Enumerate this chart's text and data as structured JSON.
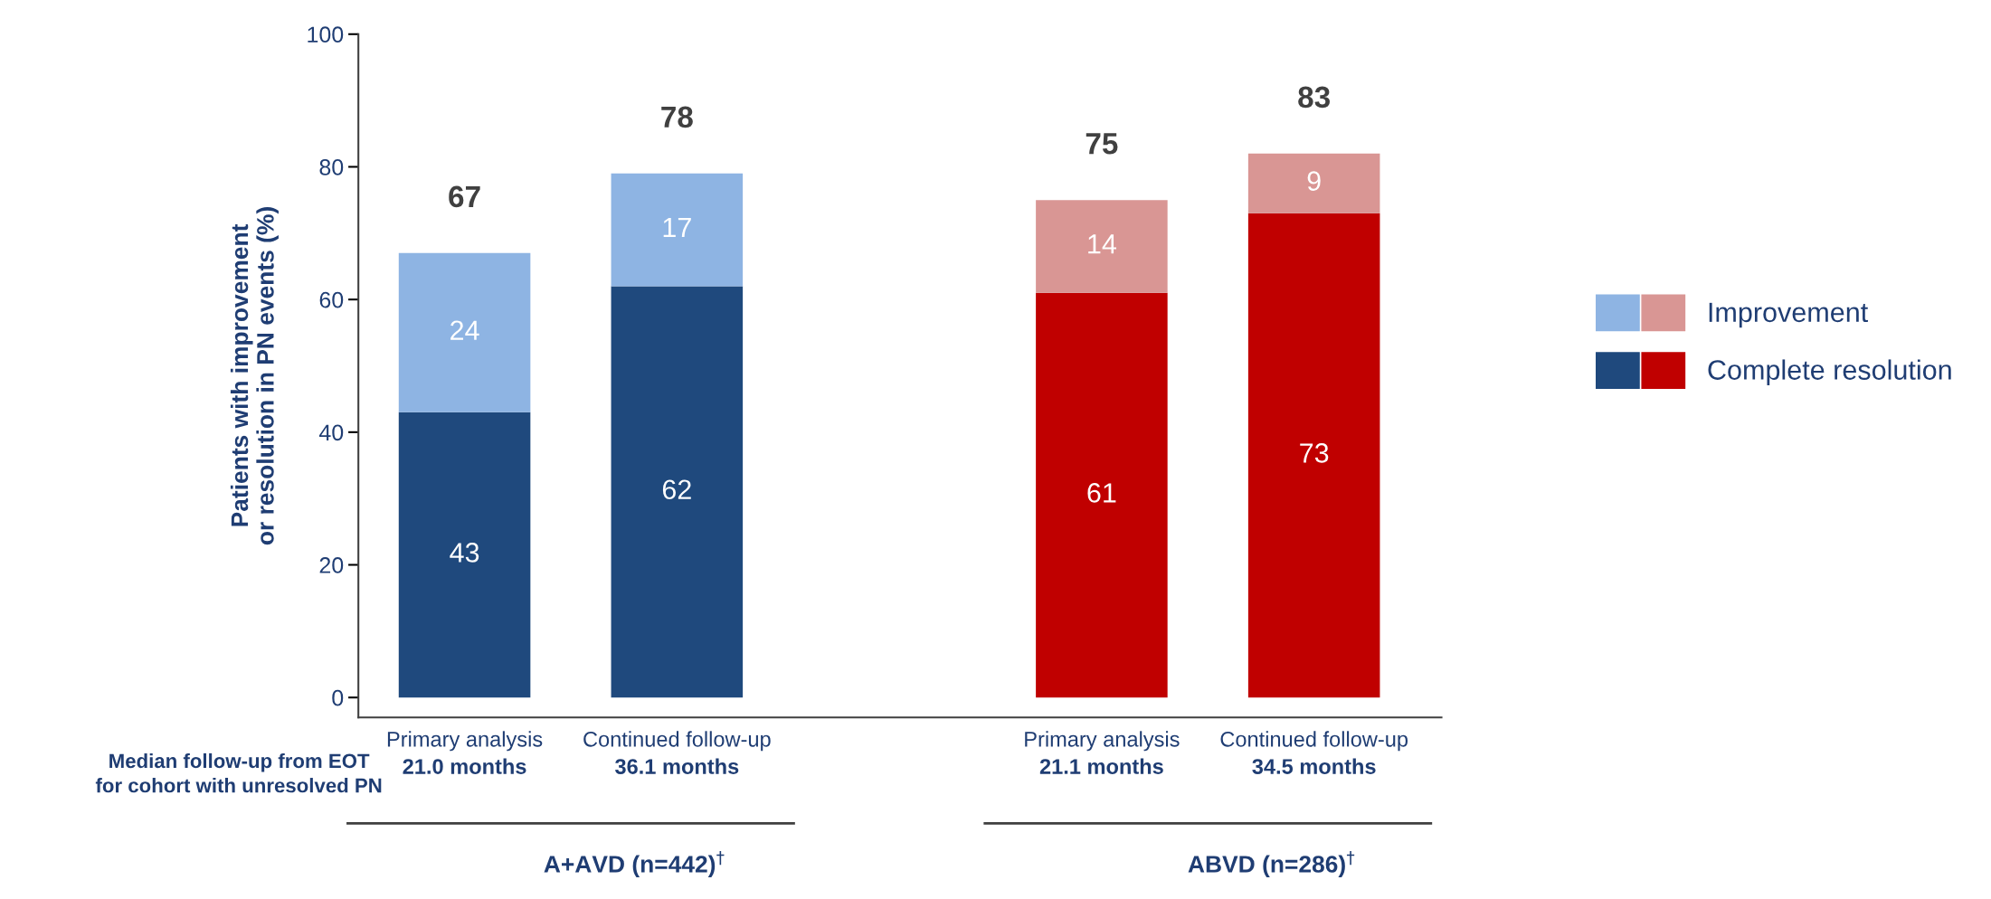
{
  "chart_data": {
    "type": "bar",
    "stacked": true,
    "ylabel": "Patients with improvement\nor resolution in PN events (%)",
    "categories": [
      "Primary analysis\n21.0 months",
      "Continued follow-up\n36.1 months",
      null,
      "Primary analysis\n21.1 months",
      "Continued follow-up\n34.5 months"
    ],
    "series": [
      {
        "name": "Complete resolution",
        "colors": [
          "#1f497d",
          "#1f497d",
          null,
          "#c00000",
          "#c00000"
        ],
        "values": [
          43,
          62,
          null,
          61,
          73
        ]
      },
      {
        "name": "Improvement",
        "colors": [
          "#8eb4e3",
          "#8eb4e3",
          null,
          "#d99694",
          "#d99694"
        ],
        "values": [
          24,
          17,
          null,
          14,
          9
        ]
      }
    ],
    "totals": [
      "67",
      "78",
      null,
      "75",
      "83"
    ],
    "data_labels": true,
    "ylim": [
      -3,
      100
    ],
    "yticks": [
      0,
      20,
      40,
      60,
      80,
      100
    ],
    "grid": false,
    "legend": "right",
    "annotations": [
      "Median follow-up from EOT\nfor cohort with unresolved PN",
      "A+AVD (n=442)$^{†}$",
      "ABVD (n=286)$^{†}$"
    ]
  }
}
